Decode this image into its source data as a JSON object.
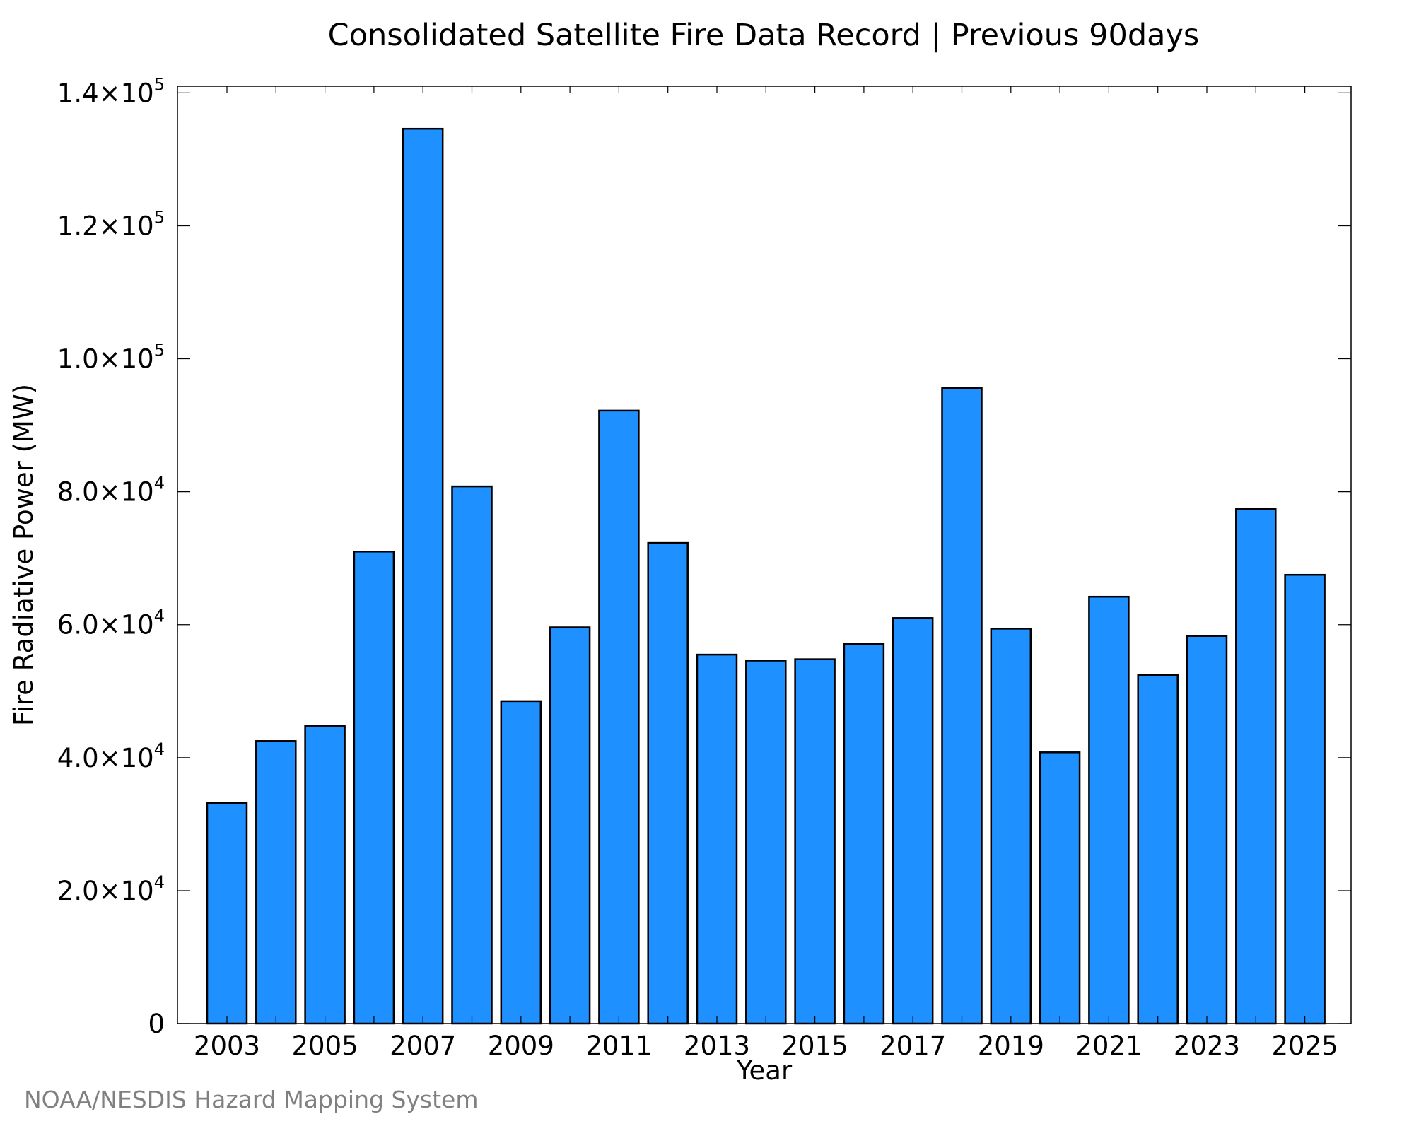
{
  "chart_data": {
    "type": "bar",
    "title": "Consolidated Satellite Fire Data Record | Previous 90days",
    "xlabel": "Year",
    "ylabel": "Fire Radiative Power (MW)",
    "categories": [
      "2003",
      "2004",
      "2005",
      "2006",
      "2007",
      "2008",
      "2009",
      "2010",
      "2011",
      "2012",
      "2013",
      "2014",
      "2015",
      "2016",
      "2017",
      "2018",
      "2019",
      "2020",
      "2021",
      "2022",
      "2023",
      "2024",
      "2025"
    ],
    "values": [
      33200,
      42500,
      44800,
      71000,
      134600,
      80800,
      48500,
      59600,
      92200,
      72300,
      55500,
      54600,
      54800,
      57100,
      61000,
      95600,
      59400,
      40800,
      64200,
      52400,
      58300,
      77400,
      67500
    ],
    "x_tick_labels": [
      "2003",
      "2005",
      "2007",
      "2009",
      "2011",
      "2013",
      "2015",
      "2017",
      "2019",
      "2021",
      "2023",
      "2025"
    ],
    "ylim": [
      0,
      141000
    ],
    "y_ticks": [
      {
        "value": 0,
        "mantissa": "0",
        "exponent": ""
      },
      {
        "value": 20000,
        "mantissa": "2.0×10",
        "exponent": "4"
      },
      {
        "value": 40000,
        "mantissa": "4.0×10",
        "exponent": "4"
      },
      {
        "value": 60000,
        "mantissa": "6.0×10",
        "exponent": "4"
      },
      {
        "value": 80000,
        "mantissa": "8.0×10",
        "exponent": "4"
      },
      {
        "value": 100000,
        "mantissa": "1.0×10",
        "exponent": "5"
      },
      {
        "value": 120000,
        "mantissa": "1.2×10",
        "exponent": "5"
      },
      {
        "value": 140000,
        "mantissa": "1.4×10",
        "exponent": "5"
      }
    ],
    "bar_color": "#1e90ff",
    "grid": false,
    "legend": "none"
  },
  "credit": "NOAA/NESDIS Hazard Mapping System"
}
